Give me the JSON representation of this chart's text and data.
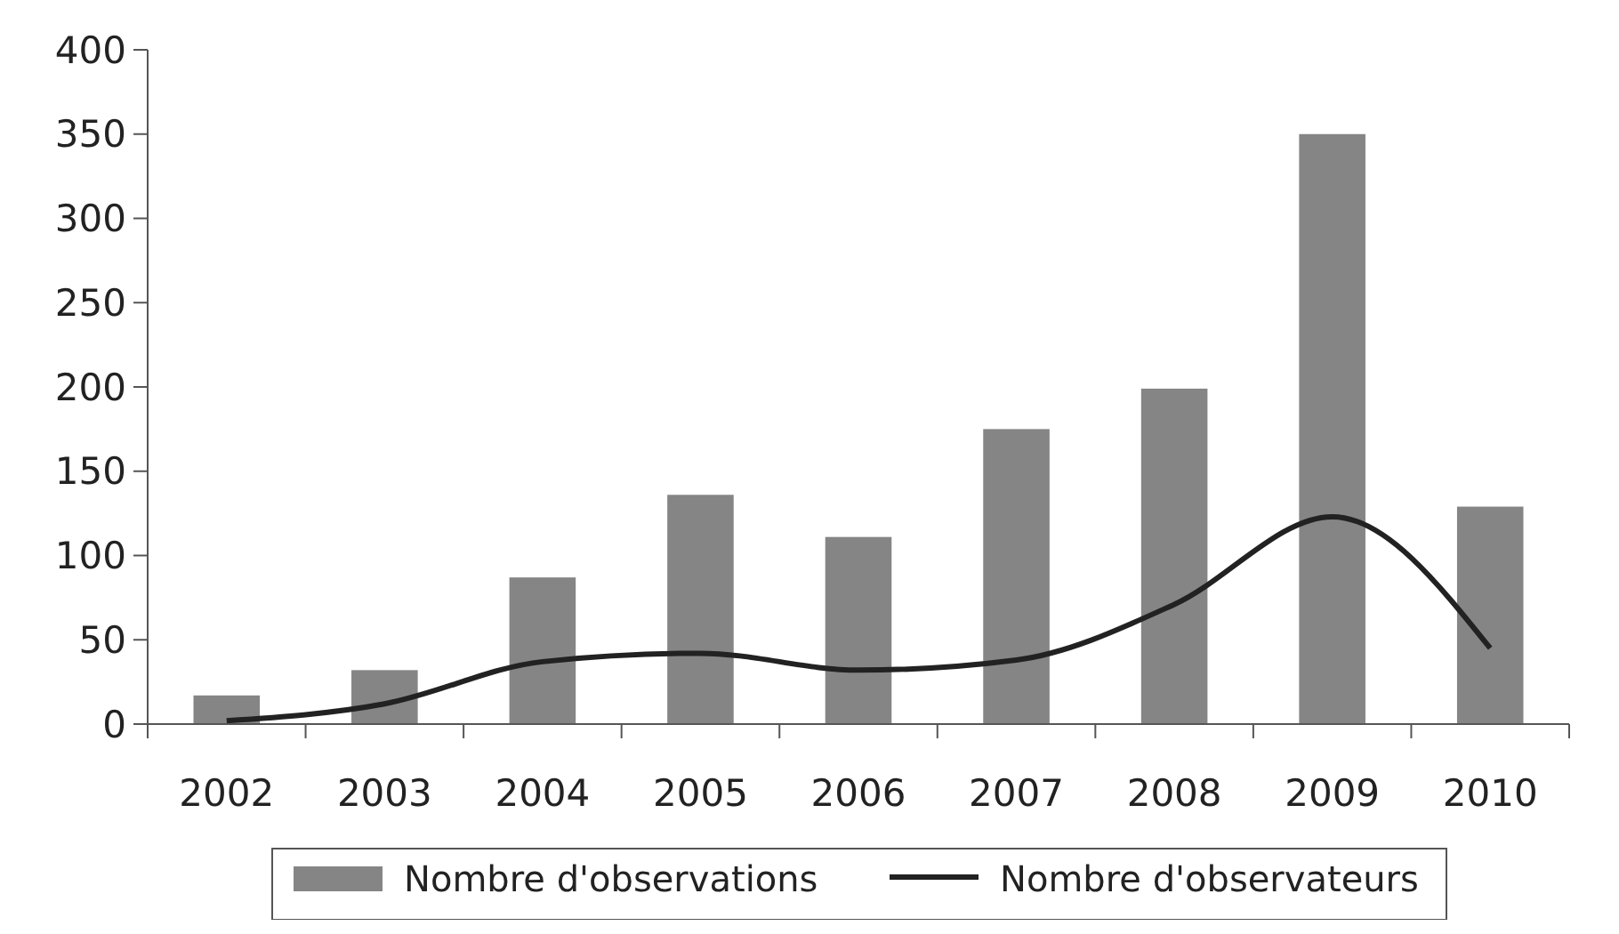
{
  "chart_data": {
    "type": "bar",
    "categories": [
      "2002",
      "2003",
      "2004",
      "2005",
      "2006",
      "2007",
      "2008",
      "2009",
      "2010"
    ],
    "series": [
      {
        "name": "Nombre d'observations",
        "color": "#858585",
        "values": [
          17,
          32,
          87,
          136,
          111,
          175,
          199,
          350,
          129
        ]
      },
      {
        "name": "Nombre d'observateurs",
        "type": "line",
        "color": "#222222",
        "values": [
          2,
          12,
          37,
          42,
          32,
          38,
          71,
          123,
          45
        ]
      }
    ],
    "ylim": [
      0,
      400
    ],
    "yticks": [
      0,
      50,
      100,
      150,
      200,
      250,
      300,
      350,
      400
    ],
    "grid": false,
    "legend": "bottom",
    "marker": "none",
    "line_style": "solid"
  }
}
